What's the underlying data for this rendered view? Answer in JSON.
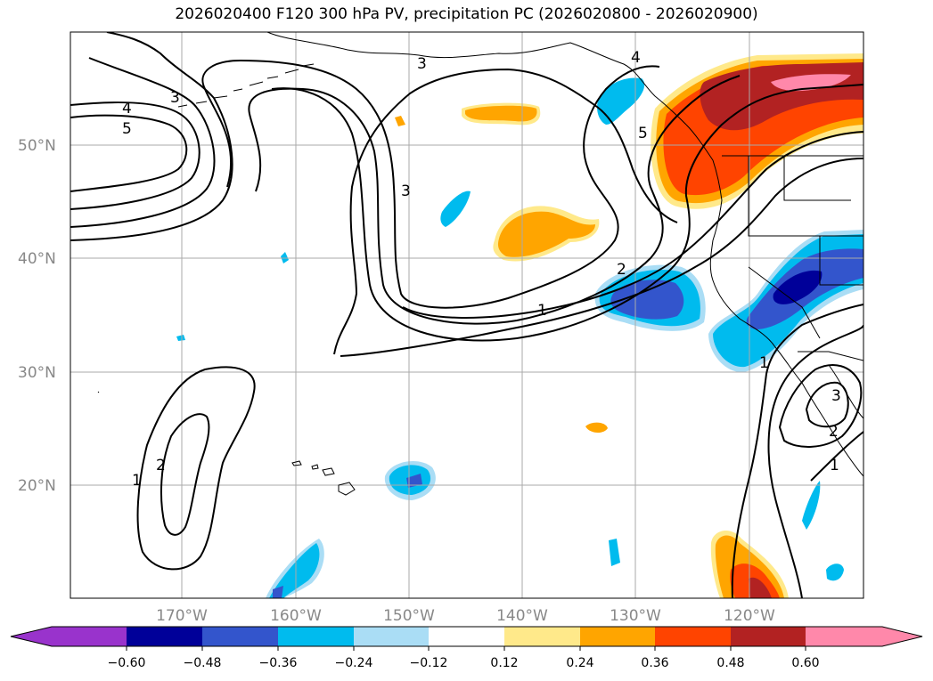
{
  "title": "2026020400 F120 300 hPa PV, precipitation PC (2026020800 - 2026020900)",
  "map": {
    "lat_labels": [
      "50°N",
      "40°N",
      "30°N",
      "20°N"
    ],
    "lon_labels": [
      "170°W",
      "160°W",
      "150°W",
      "140°W",
      "130°W",
      "120°W"
    ],
    "contour_labels": [
      "4",
      "5",
      "3",
      "3",
      "4",
      "5",
      "3",
      "2",
      "1",
      "1",
      "2",
      "1",
      "3",
      "2",
      "1"
    ],
    "colors": {
      "neg_extend": "#9933cc",
      "neg_060": "#000099",
      "neg_048": "#3355cc",
      "neg_036": "#00bbee",
      "neg_024": "#aaddf5",
      "neutral": "#ffffff",
      "pos_012": "#ffe98a",
      "pos_024": "#ffa500",
      "pos_036": "#ff4400",
      "pos_048": "#b22222",
      "pos_060": "#ff88aa"
    }
  },
  "colorbar": {
    "ticks": [
      "−0.60",
      "−0.48",
      "−0.36",
      "−0.24",
      "−0.12",
      "0.12",
      "0.24",
      "0.36",
      "0.48",
      "0.60"
    ]
  }
}
